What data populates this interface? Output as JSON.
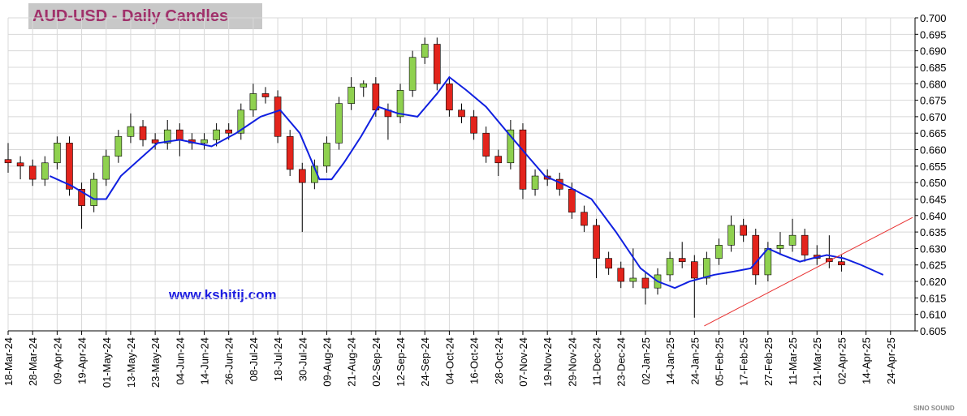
{
  "chart_data": {
    "type": "candlestick",
    "title": "AUD-USD - Daily Candles",
    "website": "www.kshitij.com",
    "watermark": "SINO SOUND",
    "xlim": [
      0,
      370
    ],
    "ylim": [
      0.605,
      0.7
    ],
    "xticks": [
      {
        "value": 0,
        "label": "18-Mar-24"
      },
      {
        "value": 10,
        "label": "28-Mar-24"
      },
      {
        "value": 20,
        "label": "09-Apr-24"
      },
      {
        "value": 30,
        "label": "19-Apr-24"
      },
      {
        "value": 40,
        "label": "01-May-24"
      },
      {
        "value": 50,
        "label": "13-May-24"
      },
      {
        "value": 60,
        "label": "23-May-24"
      },
      {
        "value": 70,
        "label": "04-Jun-24"
      },
      {
        "value": 80,
        "label": "14-Jun-24"
      },
      {
        "value": 90,
        "label": "26-Jun-24"
      },
      {
        "value": 100,
        "label": "08-Jul-24"
      },
      {
        "value": 110,
        "label": "18-Jul-24"
      },
      {
        "value": 120,
        "label": "30-Jul-24"
      },
      {
        "value": 130,
        "label": "09-Aug-24"
      },
      {
        "value": 140,
        "label": "21-Aug-24"
      },
      {
        "value": 150,
        "label": "02-Sep-24"
      },
      {
        "value": 160,
        "label": "12-Sep-24"
      },
      {
        "value": 170,
        "label": "24-Sep-24"
      },
      {
        "value": 180,
        "label": "04-Oct-24"
      },
      {
        "value": 190,
        "label": "16-Oct-24"
      },
      {
        "value": 200,
        "label": "28-Oct-24"
      },
      {
        "value": 210,
        "label": "07-Nov-24"
      },
      {
        "value": 220,
        "label": "19-Nov-24"
      },
      {
        "value": 230,
        "label": "29-Nov-24"
      },
      {
        "value": 240,
        "label": "11-Dec-24"
      },
      {
        "value": 250,
        "label": "23-Dec-24"
      },
      {
        "value": 260,
        "label": "02-Jan-25"
      },
      {
        "value": 270,
        "label": "14-Jan-25"
      },
      {
        "value": 280,
        "label": "24-Jan-25"
      },
      {
        "value": 290,
        "label": "05-Feb-25"
      },
      {
        "value": 300,
        "label": "17-Feb-25"
      },
      {
        "value": 310,
        "label": "27-Feb-25"
      },
      {
        "value": 320,
        "label": "11-Mar-25"
      },
      {
        "value": 330,
        "label": "21-Mar-25"
      },
      {
        "value": 340,
        "label": "02-Apr-25"
      },
      {
        "value": 350,
        "label": "14-Apr-25"
      },
      {
        "value": 360,
        "label": "24-Apr-25"
      }
    ],
    "yticks": [
      {
        "value": 0.605,
        "label": "0.605"
      },
      {
        "value": 0.61,
        "label": "0.610"
      },
      {
        "value": 0.615,
        "label": "0.615"
      },
      {
        "value": 0.62,
        "label": "0.620"
      },
      {
        "value": 0.625,
        "label": "0.625"
      },
      {
        "value": 0.63,
        "label": "0.630"
      },
      {
        "value": 0.635,
        "label": "0.635"
      },
      {
        "value": 0.64,
        "label": "0.640"
      },
      {
        "value": 0.645,
        "label": "0.645"
      },
      {
        "value": 0.65,
        "label": "0.650"
      },
      {
        "value": 0.655,
        "label": "0.655"
      },
      {
        "value": 0.66,
        "label": "0.660"
      },
      {
        "value": 0.665,
        "label": "0.665"
      },
      {
        "value": 0.67,
        "label": "0.670"
      },
      {
        "value": 0.675,
        "label": "0.675"
      },
      {
        "value": 0.68,
        "label": "0.680"
      },
      {
        "value": 0.685,
        "label": "0.685"
      },
      {
        "value": 0.69,
        "label": "0.690"
      },
      {
        "value": 0.695,
        "label": "0.695"
      },
      {
        "value": 0.7,
        "label": "0.700"
      }
    ],
    "grid": true,
    "up_color": "#8fd14f",
    "down_color": "#e3241c",
    "x": [
      0,
      5,
      10,
      15,
      20,
      25,
      30,
      35,
      40,
      45,
      50,
      55,
      60,
      65,
      70,
      75,
      80,
      85,
      90,
      95,
      100,
      105,
      110,
      115,
      120,
      125,
      130,
      135,
      140,
      145,
      150,
      155,
      160,
      165,
      170,
      175,
      180,
      185,
      190,
      195,
      200,
      205,
      210,
      215,
      220,
      225,
      230,
      235,
      240,
      245,
      250,
      255,
      260,
      265,
      270,
      275,
      280,
      285,
      290,
      295,
      300,
      305,
      310,
      315,
      320,
      325,
      330,
      335,
      340
    ],
    "open": [
      0.657,
      0.656,
      0.655,
      0.651,
      0.656,
      0.662,
      0.648,
      0.643,
      0.651,
      0.658,
      0.664,
      0.667,
      0.663,
      0.662,
      0.666,
      0.663,
      0.662,
      0.663,
      0.666,
      0.665,
      0.672,
      0.677,
      0.676,
      0.664,
      0.654,
      0.65,
      0.655,
      0.662,
      0.674,
      0.679,
      0.68,
      0.672,
      0.67,
      0.678,
      0.688,
      0.692,
      0.68,
      0.672,
      0.67,
      0.665,
      0.658,
      0.656,
      0.666,
      0.648,
      0.652,
      0.651,
      0.648,
      0.641,
      0.637,
      0.627,
      0.624,
      0.62,
      0.621,
      0.618,
      0.622,
      0.627,
      0.626,
      0.621,
      0.627,
      0.631,
      0.637,
      0.634,
      0.622,
      0.63,
      0.631,
      0.634,
      0.628,
      0.627,
      0.626
    ],
    "high": [
      0.662,
      0.658,
      0.657,
      0.658,
      0.664,
      0.664,
      0.65,
      0.653,
      0.66,
      0.666,
      0.671,
      0.669,
      0.665,
      0.669,
      0.668,
      0.665,
      0.665,
      0.668,
      0.668,
      0.674,
      0.68,
      0.679,
      0.678,
      0.666,
      0.656,
      0.657,
      0.664,
      0.676,
      0.682,
      0.681,
      0.682,
      0.674,
      0.68,
      0.69,
      0.694,
      0.694,
      0.682,
      0.674,
      0.672,
      0.667,
      0.66,
      0.669,
      0.668,
      0.654,
      0.654,
      0.653,
      0.65,
      0.643,
      0.639,
      0.629,
      0.626,
      0.63,
      0.623,
      0.624,
      0.629,
      0.632,
      0.628,
      0.629,
      0.633,
      0.64,
      0.639,
      0.636,
      0.632,
      0.635,
      0.639,
      0.636,
      0.631,
      0.634,
      0.628
    ],
    "low": [
      0.653,
      0.651,
      0.649,
      0.649,
      0.654,
      0.646,
      0.636,
      0.641,
      0.649,
      0.656,
      0.662,
      0.661,
      0.66,
      0.66,
      0.658,
      0.66,
      0.66,
      0.661,
      0.663,
      0.663,
      0.67,
      0.674,
      0.662,
      0.652,
      0.635,
      0.648,
      0.653,
      0.66,
      0.672,
      0.676,
      0.67,
      0.663,
      0.668,
      0.676,
      0.686,
      0.678,
      0.67,
      0.668,
      0.663,
      0.656,
      0.652,
      0.654,
      0.645,
      0.646,
      0.649,
      0.646,
      0.639,
      0.635,
      0.621,
      0.622,
      0.618,
      0.618,
      0.613,
      0.616,
      0.62,
      0.624,
      0.609,
      0.619,
      0.625,
      0.629,
      0.632,
      0.619,
      0.62,
      0.628,
      0.629,
      0.626,
      0.625,
      0.624,
      0.623
    ],
    "close": [
      0.656,
      0.655,
      0.651,
      0.656,
      0.662,
      0.648,
      0.643,
      0.651,
      0.658,
      0.664,
      0.667,
      0.663,
      0.662,
      0.666,
      0.663,
      0.662,
      0.663,
      0.666,
      0.665,
      0.672,
      0.677,
      0.676,
      0.664,
      0.654,
      0.65,
      0.655,
      0.662,
      0.674,
      0.679,
      0.68,
      0.672,
      0.67,
      0.678,
      0.688,
      0.692,
      0.68,
      0.672,
      0.67,
      0.665,
      0.658,
      0.656,
      0.666,
      0.648,
      0.652,
      0.651,
      0.648,
      0.641,
      0.637,
      0.627,
      0.624,
      0.62,
      0.621,
      0.618,
      0.622,
      0.627,
      0.626,
      0.621,
      0.627,
      0.631,
      0.637,
      0.634,
      0.622,
      0.63,
      0.631,
      0.634,
      0.628,
      0.627,
      0.626,
      0.625
    ],
    "moving_average": {
      "color": "#1020e0",
      "x": [
        17,
        26,
        35,
        40,
        46,
        55,
        61,
        70,
        83,
        93,
        103,
        111,
        119,
        127,
        132,
        137,
        144,
        151,
        159,
        167,
        175,
        180,
        187,
        195,
        204,
        212,
        219,
        228,
        238,
        248,
        258,
        265,
        272,
        278,
        288,
        296,
        303,
        310,
        316,
        323,
        328,
        334,
        341,
        348,
        354,
        357
      ],
      "values": [
        0.652,
        0.649,
        0.645,
        0.645,
        0.652,
        0.658,
        0.662,
        0.663,
        0.661,
        0.665,
        0.67,
        0.672,
        0.665,
        0.651,
        0.651,
        0.656,
        0.664,
        0.673,
        0.671,
        0.67,
        0.677,
        0.682,
        0.678,
        0.673,
        0.665,
        0.658,
        0.652,
        0.649,
        0.645,
        0.635,
        0.624,
        0.62,
        0.618,
        0.62,
        0.622,
        0.623,
        0.624,
        0.63,
        0.628,
        0.626,
        0.627,
        0.628,
        0.627,
        0.625,
        0.623,
        0.622
      ]
    },
    "trendline": {
      "color": "#e83030",
      "x": [
        284,
        369
      ],
      "values": [
        0.6065,
        0.6394
      ]
    }
  }
}
